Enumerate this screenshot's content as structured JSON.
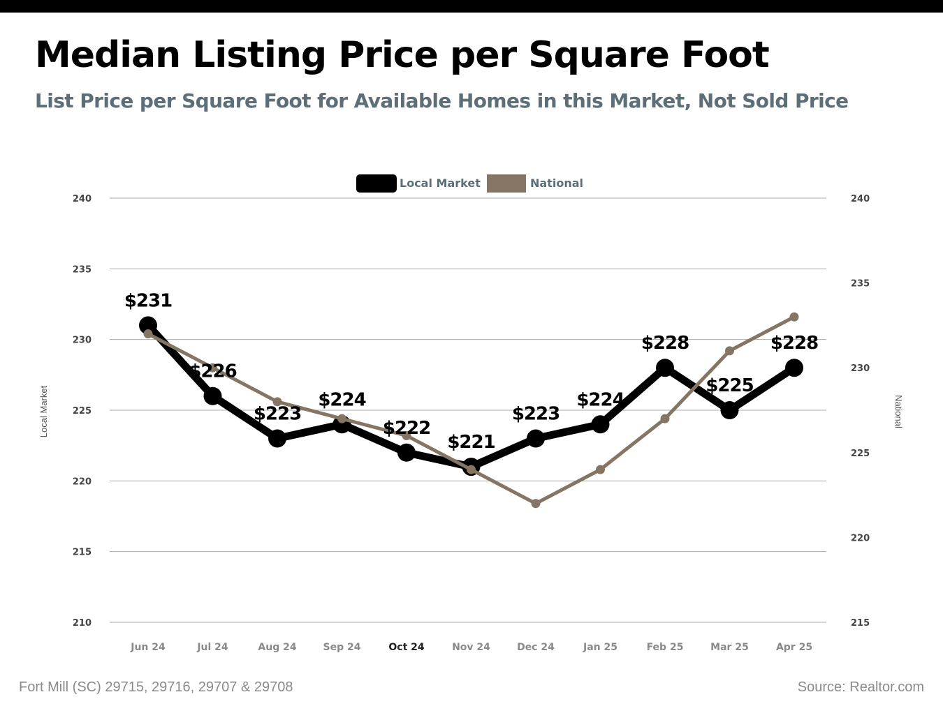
{
  "title": "Median Listing Price per Square Foot",
  "subtitle": "List Price per Square Foot for Available Homes in this Market, Not Sold Price",
  "footer": {
    "location": "Fort Mill (SC) 29715, 29716, 29707 & 29708",
    "source": "Source: Realtor.com"
  },
  "chart_data": {
    "type": "line",
    "categories": [
      "Jun 24",
      "Jul 24",
      "Aug 24",
      "Sep 24",
      "Oct 24",
      "Nov 24",
      "Dec 24",
      "Jan 25",
      "Feb 25",
      "Mar 25",
      "Apr 25"
    ],
    "series": [
      {
        "name": "Local Market",
        "axis": "left",
        "color": "#000000",
        "values": [
          231,
          226,
          223,
          224,
          222,
          221,
          223,
          224,
          228,
          225,
          228
        ],
        "labels": [
          "$231",
          "$226",
          "$223",
          "$224",
          "$222",
          "$221",
          "$223",
          "$224",
          "$228",
          "$225",
          "$228"
        ]
      },
      {
        "name": "National",
        "axis": "right",
        "color": "#857564",
        "values": [
          232,
          230,
          228,
          227,
          226,
          224,
          222,
          224,
          227,
          231,
          233
        ]
      }
    ],
    "left_axis": {
      "label": "Local Market",
      "ylim": [
        210,
        240
      ],
      "ticks": [
        210,
        215,
        220,
        225,
        230,
        235,
        240
      ]
    },
    "right_axis": {
      "label": "National",
      "ylim": [
        215,
        240
      ],
      "ticks": [
        215,
        220,
        225,
        230,
        235,
        240
      ]
    },
    "grid": true,
    "legend_position": "top-center",
    "highlighted_category": "Oct 24"
  }
}
